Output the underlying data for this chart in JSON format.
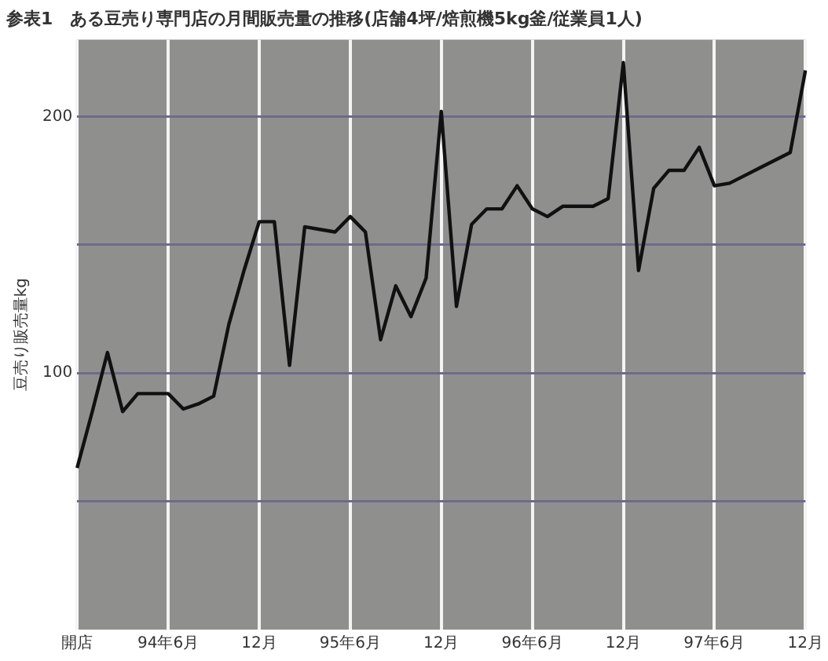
{
  "chart_data": {
    "type": "line",
    "title": "参表1　ある豆売り専門店の月間販売量の推移(店舗4坪/焙煎機5kg釜/従業員1人)",
    "ylabel": "豆売り販売量kg",
    "categories": [
      "開店",
      null,
      null,
      null,
      null,
      null,
      "94年6月",
      null,
      null,
      null,
      null,
      null,
      "12月",
      null,
      null,
      null,
      null,
      null,
      "95年6月",
      null,
      null,
      null,
      null,
      null,
      "12月",
      null,
      null,
      null,
      null,
      null,
      "96年6月",
      null,
      null,
      null,
      null,
      null,
      "12月",
      null,
      null,
      null,
      null,
      null,
      "97年6月",
      null,
      null,
      null,
      null,
      null,
      "12月"
    ],
    "series": [
      {
        "color": "#111111",
        "values": [
          63,
          85,
          108,
          85,
          92,
          92,
          92,
          86,
          88,
          91,
          119,
          140,
          159,
          159,
          103,
          157,
          156,
          155,
          161,
          155,
          113,
          134,
          122,
          137,
          202,
          126,
          158,
          164,
          164,
          173,
          164,
          161,
          165,
          165,
          165,
          168,
          221,
          140,
          172,
          179,
          179,
          188,
          173,
          174,
          177,
          180,
          183,
          186,
          218
        ]
      }
    ],
    "ylim": [
      0,
      230
    ],
    "yticks": [
      {
        "value": 50,
        "label": null
      },
      100,
      {
        "value": 150,
        "label": null
      },
      200
    ],
    "grid": true,
    "marker": "none",
    "line_style": "solid"
  }
}
